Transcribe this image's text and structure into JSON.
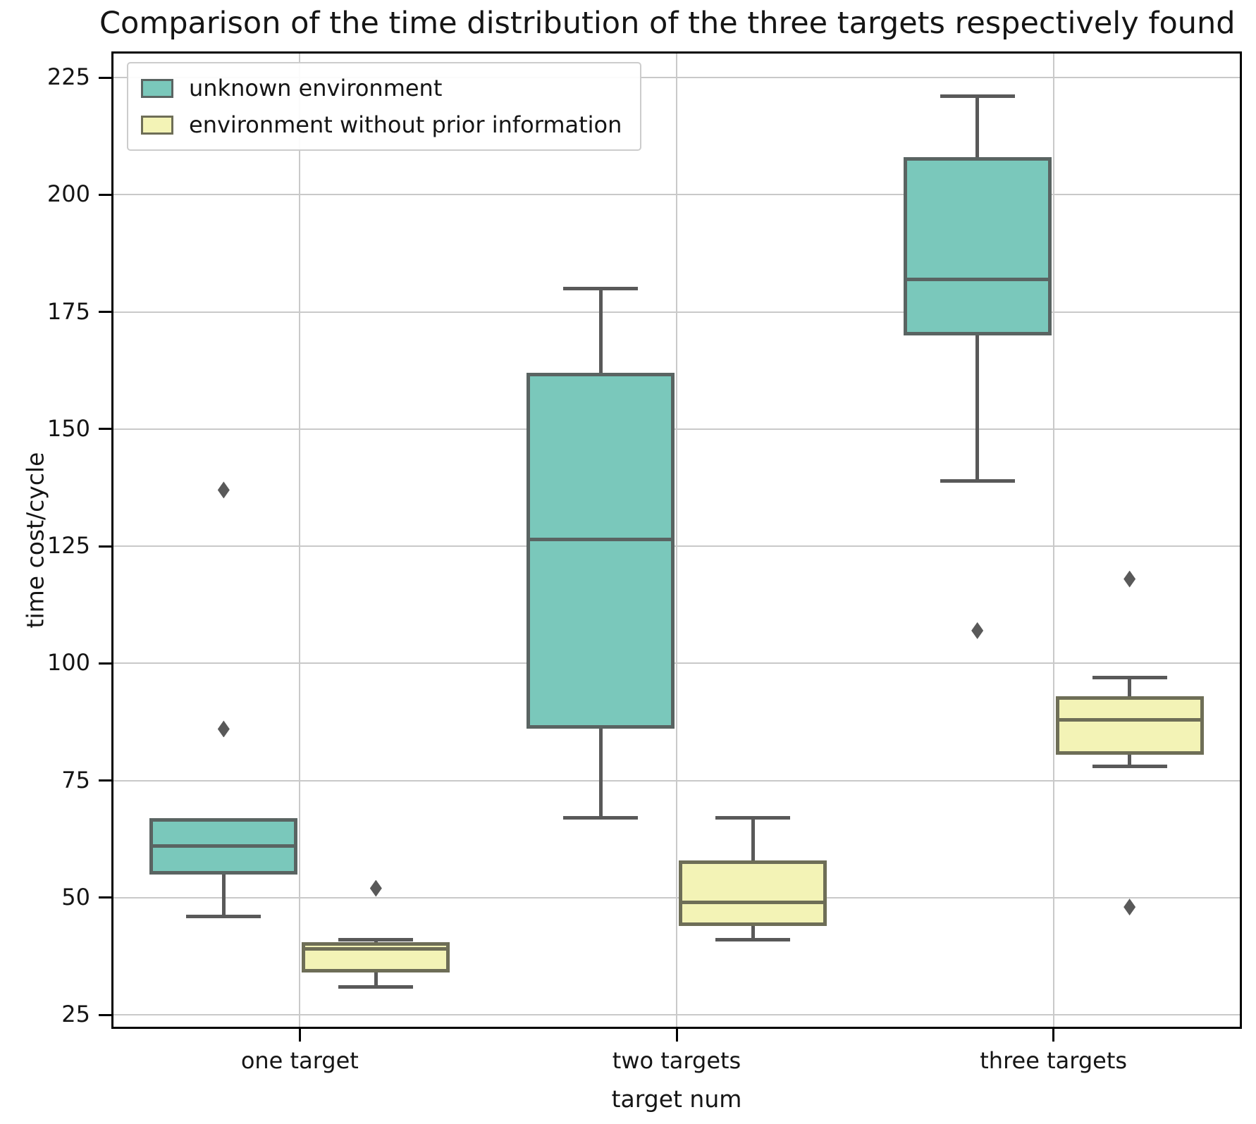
{
  "title": "Comparison of the time distribution of the three targets respectively found",
  "colors": {
    "grid": "#c9c9c9",
    "spine": "#000000",
    "whisker": "#595959",
    "text": "#151515",
    "legend_border": "#cccccc"
  },
  "chart_data": {
    "type": "box",
    "title": "Comparison of the time distribution of the three targets respectively found",
    "xlabel": "target num",
    "ylabel": "time cost/cycle",
    "categories": [
      "one target",
      "two targets",
      "three targets"
    ],
    "yticks": [
      225,
      200,
      175,
      150,
      125,
      100,
      75,
      50,
      25
    ],
    "ylim": [
      22,
      230.6
    ],
    "grid": true,
    "legend_position": "upper left",
    "series": [
      {
        "name": "unknown environment",
        "fill": "#7AC8BB",
        "edge": "#5A6462",
        "boxes": [
          {
            "category": "one target",
            "whislo": 46,
            "q1": 55,
            "med": 61,
            "q3": 67,
            "whishi": 67,
            "fliers": [
              86,
              137
            ]
          },
          {
            "category": "two targets",
            "whislo": 67,
            "q1": 86,
            "med": 126.5,
            "q3": 162,
            "whishi": 180,
            "fliers": []
          },
          {
            "category": "three targets",
            "whislo": 139,
            "q1": 170,
            "med": 182,
            "q3": 208,
            "whishi": 221,
            "fliers": [
              107
            ]
          }
        ]
      },
      {
        "name": "environment without prior information",
        "fill": "#F3F3B6",
        "edge": "#6E6E57",
        "boxes": [
          {
            "category": "one target",
            "whislo": 31,
            "q1": 34,
            "med": 39,
            "q3": 40.5,
            "whishi": 41,
            "fliers": [
              52
            ]
          },
          {
            "category": "two targets",
            "whislo": 41,
            "q1": 44,
            "med": 49,
            "q3": 58,
            "whishi": 67,
            "fliers": []
          },
          {
            "category": "three targets",
            "whislo": 78,
            "q1": 80.5,
            "med": 88,
            "q3": 93,
            "whishi": 97,
            "fliers": [
              118,
              48
            ]
          }
        ]
      }
    ]
  }
}
